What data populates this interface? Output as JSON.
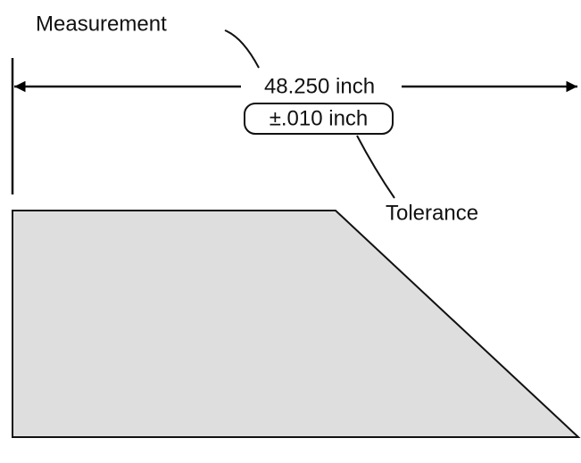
{
  "labels": {
    "measurement": "Measurement",
    "dimension": "48.250 inch",
    "tolerance_value": "±.010 inch",
    "tolerance": "Tolerance"
  }
}
